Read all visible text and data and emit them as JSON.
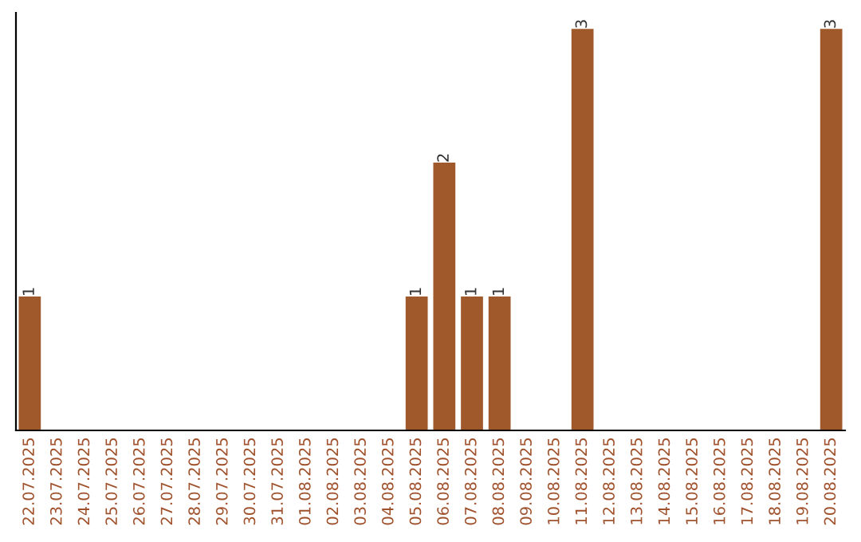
{
  "chart_data": {
    "type": "bar",
    "categories": [
      "22.07.2025",
      "23.07.2025",
      "24.07.2025",
      "25.07.2025",
      "26.07.2025",
      "27.07.2025",
      "28.07.2025",
      "29.07.2025",
      "30.07.2025",
      "31.07.2025",
      "01.08.2025",
      "02.08.2025",
      "03.08.2025",
      "04.08.2025",
      "05.08.2025",
      "06.08.2025",
      "07.08.2025",
      "08.08.2025",
      "09.08.2025",
      "10.08.2025",
      "11.08.2025",
      "12.08.2025",
      "13.08.2025",
      "14.08.2025",
      "15.08.2025",
      "16.08.2025",
      "17.08.2025",
      "18.08.2025",
      "19.08.2025",
      "20.08.2025"
    ],
    "values": [
      1,
      0,
      0,
      0,
      0,
      0,
      0,
      0,
      0,
      0,
      0,
      0,
      0,
      0,
      1,
      2,
      1,
      1,
      0,
      0,
      3,
      0,
      0,
      0,
      0,
      0,
      0,
      0,
      0,
      3
    ],
    "value_labels": [
      "1",
      null,
      null,
      null,
      null,
      null,
      null,
      null,
      null,
      null,
      null,
      null,
      null,
      null,
      "1",
      "2",
      "1",
      "1",
      null,
      null,
      "3",
      null,
      null,
      null,
      null,
      null,
      null,
      null,
      null,
      "3"
    ],
    "color": "#a0592b",
    "grid": false,
    "legend": false
  }
}
